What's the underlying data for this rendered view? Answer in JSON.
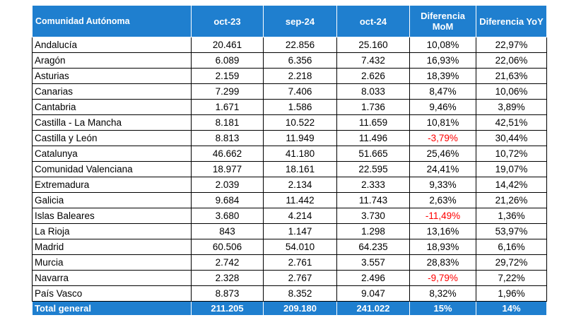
{
  "table": {
    "headers": [
      "Comunidad Autónoma",
      "oct-23",
      "sep-24",
      "oct-24",
      "Diferencia MoM",
      "Diferencia YoY"
    ],
    "rows": [
      [
        "Andalucía",
        "20.461",
        "22.856",
        "25.160",
        "10,08%",
        "22,97%"
      ],
      [
        "Aragón",
        "6.089",
        "6.356",
        "7.432",
        "16,93%",
        "22,06%"
      ],
      [
        "Asturias",
        "2.159",
        "2.218",
        "2.626",
        "18,39%",
        "21,63%"
      ],
      [
        "Canarias",
        "7.299",
        "7.406",
        "8.033",
        "8,47%",
        "10,06%"
      ],
      [
        "Cantabria",
        "1.671",
        "1.586",
        "1.736",
        "9,46%",
        "3,89%"
      ],
      [
        "Castilla - La Mancha",
        "8.181",
        "10.522",
        "11.659",
        "10,81%",
        "42,51%"
      ],
      [
        "Castilla y León",
        "8.813",
        "11.949",
        "11.496",
        "-3,79%",
        "30,44%"
      ],
      [
        "Catalunya",
        "46.662",
        "41.180",
        "51.665",
        "25,46%",
        "10,72%"
      ],
      [
        "Comunidad Valenciana",
        "18.977",
        "18.161",
        "22.595",
        "24,41%",
        "19,07%"
      ],
      [
        "Extremadura",
        "2.039",
        "2.134",
        "2.333",
        "9,33%",
        "14,42%"
      ],
      [
        "Galicia",
        "9.684",
        "11.442",
        "11.743",
        "2,63%",
        "21,26%"
      ],
      [
        "Islas Baleares",
        "3.680",
        "4.214",
        "3.730",
        "-11,49%",
        "1,36%"
      ],
      [
        "La Rioja",
        "843",
        "1.147",
        "1.298",
        "13,16%",
        "53,97%"
      ],
      [
        "Madrid",
        "60.506",
        "54.010",
        "64.235",
        "18,93%",
        "6,16%"
      ],
      [
        "Murcia",
        "2.742",
        "2.761",
        "3.557",
        "28,83%",
        "29,72%"
      ],
      [
        "Navarra",
        "2.328",
        "2.767",
        "2.496",
        "-9,79%",
        "7,22%"
      ],
      [
        "País Vasco",
        "8.873",
        "8.352",
        "9.047",
        "8,32%",
        "1,96%"
      ]
    ],
    "total": [
      "Total general",
      "211.205",
      "209.180",
      "241.022",
      "15%",
      "14%"
    ]
  },
  "colors": {
    "header_bg": "#1f7fcf",
    "header_text": "#ffffff",
    "negative_text": "#ff0000",
    "border": "#000000"
  }
}
